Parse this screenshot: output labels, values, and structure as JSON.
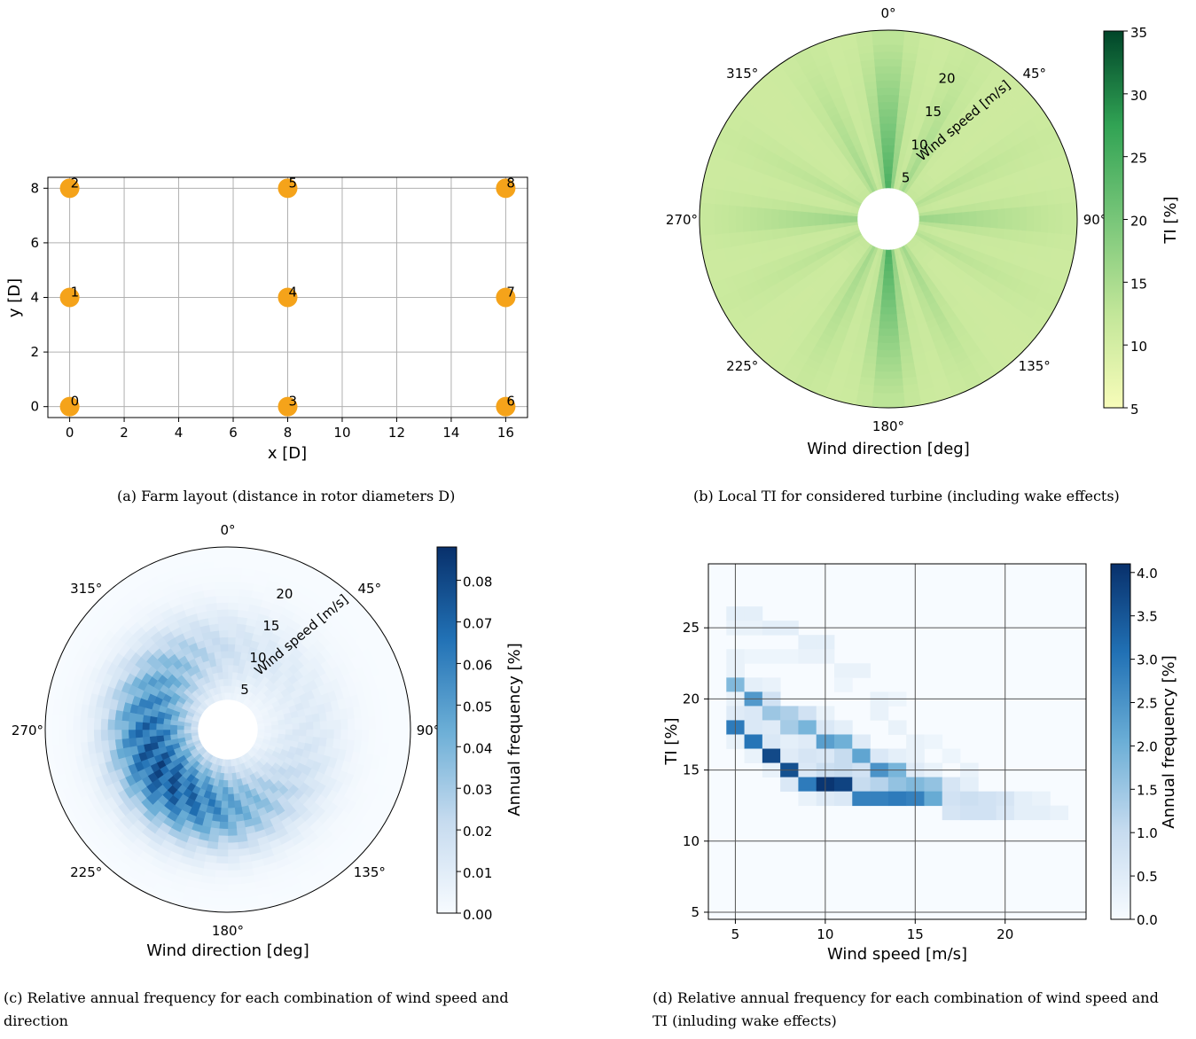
{
  "captions": {
    "a": "(a) Farm layout (distance in rotor diameters D)",
    "b": "(b) Local TI for considered turbine (including wake effects)",
    "c1": "(c) Relative annual frequency for each combination of wind speed and",
    "c2": "direction",
    "d1": "(d) Relative annual frequency for each combination of wind speed and",
    "d2": "TI (inluding wake effects)"
  },
  "chart_data": [
    {
      "id": "a",
      "type": "scatter",
      "xlabel": "x [D]",
      "ylabel": "y [D]",
      "xlim": [
        -0.8,
        16.8
      ],
      "ylim": [
        -0.4,
        8.4
      ],
      "xticks": [
        0,
        2,
        4,
        6,
        8,
        10,
        12,
        14,
        16
      ],
      "yticks": [
        0,
        2,
        4,
        6,
        8
      ],
      "grid": true,
      "marker_color": "#f5a31a",
      "points": [
        {
          "label": "0",
          "x": 0,
          "y": 0
        },
        {
          "label": "1",
          "x": 0,
          "y": 4
        },
        {
          "label": "2",
          "x": 0,
          "y": 8
        },
        {
          "label": "3",
          "x": 8,
          "y": 0
        },
        {
          "label": "4",
          "x": 8,
          "y": 4
        },
        {
          "label": "5",
          "x": 8,
          "y": 8
        },
        {
          "label": "6",
          "x": 16,
          "y": 0
        },
        {
          "label": "7",
          "x": 16,
          "y": 4
        },
        {
          "label": "8",
          "x": 16,
          "y": 8
        }
      ]
    },
    {
      "id": "b",
      "type": "heatmap",
      "projection": "polar",
      "xlabel": "Wind direction [deg]",
      "radial_label": "Wind speed [m/s]",
      "angle_ticks": [
        "0°",
        "45°",
        "90°",
        "135°",
        "180°",
        "225°",
        "270°",
        "315°"
      ],
      "radial_ticks": [
        5,
        10,
        15,
        20
      ],
      "radial_range": [
        3,
        25
      ],
      "colorbar_label": "TI [%]",
      "colorbar_range": [
        5,
        35
      ],
      "colorbar_ticks": [
        5,
        10,
        15,
        20,
        25,
        30,
        35
      ],
      "colormap": "Greens",
      "baseline_ti": 11,
      "wake_sectors": [
        {
          "dir": 0,
          "peak": 26,
          "width": 6
        },
        {
          "dir": 180,
          "peak": 26,
          "width": 6
        },
        {
          "dir": 90,
          "peak": 17,
          "width": 6
        },
        {
          "dir": 270,
          "peak": 17,
          "width": 6
        },
        {
          "dir": 27,
          "peak": 16,
          "width": 5
        },
        {
          "dir": 153,
          "peak": 16,
          "width": 5
        },
        {
          "dir": 207,
          "peak": 16,
          "width": 5
        },
        {
          "dir": 333,
          "peak": 16,
          "width": 5
        },
        {
          "dir": 63,
          "peak": 14,
          "width": 5
        },
        {
          "dir": 117,
          "peak": 14,
          "width": 5
        },
        {
          "dir": 243,
          "peak": 14,
          "width": 5
        },
        {
          "dir": 297,
          "peak": 14,
          "width": 5
        }
      ]
    },
    {
      "id": "c",
      "type": "heatmap",
      "projection": "polar",
      "xlabel": "Wind direction [deg]",
      "radial_label": "Wind speed [m/s]",
      "angle_ticks": [
        "0°",
        "45°",
        "90°",
        "135°",
        "180°",
        "225°",
        "270°",
        "315°"
      ],
      "radial_ticks": [
        5,
        10,
        15,
        20
      ],
      "radial_range": [
        3,
        25
      ],
      "colorbar_label": "Annual frequency [%]",
      "colorbar_range": [
        0,
        0.088
      ],
      "colorbar_ticks": [
        "0.00",
        "0.01",
        "0.02",
        "0.03",
        "0.04",
        "0.05",
        "0.06",
        "0.07",
        "0.08"
      ],
      "colormap": "Blues",
      "peak_direction": 240,
      "peak_speed": 10,
      "peak_value": 0.085
    },
    {
      "id": "d",
      "type": "heatmap",
      "xlabel": "Wind speed [m/s]",
      "ylabel": "TI [%]",
      "xlim": [
        3.5,
        24.5
      ],
      "ylim": [
        4.5,
        29.5
      ],
      "xticks": [
        5,
        10,
        15,
        20
      ],
      "yticks": [
        5,
        10,
        15,
        20,
        25
      ],
      "grid": true,
      "colorbar_label": "Annual frequency [%]",
      "colorbar_range": [
        0,
        4.1
      ],
      "colorbar_ticks": [
        "0.0",
        "0.5",
        "1.0",
        "1.5",
        "2.0",
        "2.5",
        "3.0",
        "3.5",
        "4.0"
      ],
      "colormap": "Blues",
      "background_value": 0.05,
      "cells": [
        [
          5,
          26,
          0.4
        ],
        [
          6,
          26,
          0.4
        ],
        [
          5,
          25,
          0.3
        ],
        [
          6,
          25,
          0.3
        ],
        [
          7,
          25,
          0.4
        ],
        [
          8,
          25,
          0.4
        ],
        [
          9,
          24,
          0.4
        ],
        [
          10,
          24,
          0.4
        ],
        [
          5,
          23,
          0.3
        ],
        [
          6,
          23,
          0.2
        ],
        [
          7,
          23,
          0.2
        ],
        [
          8,
          23,
          0.2
        ],
        [
          9,
          23,
          0.3
        ],
        [
          10,
          23,
          0.3
        ],
        [
          5,
          22,
          0.3
        ],
        [
          11,
          22,
          0.3
        ],
        [
          12,
          22,
          0.3
        ],
        [
          5,
          21,
          1.8
        ],
        [
          6,
          21,
          0.4
        ],
        [
          7,
          21,
          0.3
        ],
        [
          11,
          21,
          0.2
        ],
        [
          5,
          20,
          0.3
        ],
        [
          6,
          20,
          2.4
        ],
        [
          7,
          20,
          0.8
        ],
        [
          13,
          20,
          0.3
        ],
        [
          14,
          20,
          0.2
        ],
        [
          5,
          19,
          0.5
        ],
        [
          6,
          19,
          0.6
        ],
        [
          7,
          19,
          1.5
        ],
        [
          8,
          19,
          1.3
        ],
        [
          9,
          19,
          0.8
        ],
        [
          10,
          19,
          0.3
        ],
        [
          13,
          19,
          0.3
        ],
        [
          5,
          18,
          2.9
        ],
        [
          6,
          18,
          0.6
        ],
        [
          7,
          18,
          0.5
        ],
        [
          8,
          18,
          1.4
        ],
        [
          9,
          18,
          1.9
        ],
        [
          10,
          18,
          0.6
        ],
        [
          11,
          18,
          0.4
        ],
        [
          14,
          18,
          0.3
        ],
        [
          5,
          17,
          0.3
        ],
        [
          6,
          17,
          3.0
        ],
        [
          7,
          17,
          0.6
        ],
        [
          8,
          17,
          0.4
        ],
        [
          9,
          17,
          0.5
        ],
        [
          10,
          17,
          2.3
        ],
        [
          11,
          17,
          2.0
        ],
        [
          12,
          17,
          0.5
        ],
        [
          15,
          17,
          0.3
        ],
        [
          16,
          17,
          0.2
        ],
        [
          6,
          16,
          0.3
        ],
        [
          7,
          16,
          3.7
        ],
        [
          8,
          16,
          0.5
        ],
        [
          9,
          16,
          0.7
        ],
        [
          10,
          16,
          0.6
        ],
        [
          11,
          16,
          1.0
        ],
        [
          12,
          16,
          2.2
        ],
        [
          13,
          16,
          0.6
        ],
        [
          14,
          16,
          0.4
        ],
        [
          15,
          16,
          0.3
        ],
        [
          17,
          16,
          0.2
        ],
        [
          7,
          15,
          0.3
        ],
        [
          8,
          15,
          3.6
        ],
        [
          9,
          15,
          0.6
        ],
        [
          10,
          15,
          0.9
        ],
        [
          11,
          15,
          1.0
        ],
        [
          12,
          15,
          0.8
        ],
        [
          13,
          15,
          2.5
        ],
        [
          14,
          15,
          1.9
        ],
        [
          15,
          15,
          0.5
        ],
        [
          16,
          15,
          0.3
        ],
        [
          18,
          15,
          0.3
        ],
        [
          8,
          14,
          0.6
        ],
        [
          9,
          14,
          2.9
        ],
        [
          10,
          14,
          4.0
        ],
        [
          11,
          14,
          3.8
        ],
        [
          12,
          14,
          1.0
        ],
        [
          13,
          14,
          1.2
        ],
        [
          14,
          14,
          1.6
        ],
        [
          15,
          14,
          1.8
        ],
        [
          16,
          14,
          1.6
        ],
        [
          17,
          14,
          0.7
        ],
        [
          18,
          14,
          0.4
        ],
        [
          9,
          13,
          0.3
        ],
        [
          10,
          13,
          0.5
        ],
        [
          11,
          13,
          0.6
        ],
        [
          12,
          13,
          2.8
        ],
        [
          13,
          13,
          2.8
        ],
        [
          14,
          13,
          2.9
        ],
        [
          15,
          13,
          2.8
        ],
        [
          16,
          13,
          2.1
        ],
        [
          17,
          13,
          0.8
        ],
        [
          18,
          13,
          0.9
        ],
        [
          19,
          13,
          0.8
        ],
        [
          20,
          13,
          0.7
        ],
        [
          21,
          13,
          0.4
        ],
        [
          22,
          13,
          0.3
        ],
        [
          17,
          12,
          0.7
        ],
        [
          18,
          12,
          0.8
        ],
        [
          19,
          12,
          0.8
        ],
        [
          20,
          12,
          0.6
        ],
        [
          21,
          12,
          0.4
        ],
        [
          22,
          12,
          0.4
        ],
        [
          23,
          12,
          0.3
        ]
      ]
    }
  ]
}
